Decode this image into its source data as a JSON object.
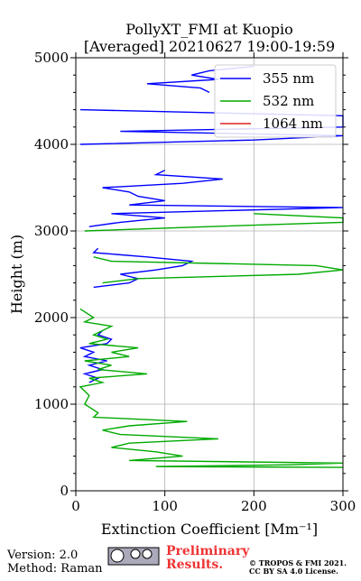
{
  "chart_data": {
    "type": "line",
    "title": [
      "PollyXT_FMI at Kuopio",
      "[Averaged] 20210627 19:00-19:59"
    ],
    "xlabel": "Extinction Coefficient [Mm⁻¹]",
    "ylabel": "Height (m)",
    "xlim": [
      0,
      300
    ],
    "xticks": [
      0,
      100,
      200,
      300
    ],
    "ylim": [
      0,
      5000
    ],
    "yticks": [
      0,
      1000,
      2000,
      3000,
      4000,
      5000
    ],
    "yminorticks": [
      200,
      400,
      600,
      800,
      1200,
      1400,
      1600,
      1800,
      2200,
      2400,
      2600,
      2800,
      3200,
      3400,
      3600,
      3800,
      4200,
      4400,
      4600,
      4800
    ],
    "grid": true,
    "legend": "upper right",
    "series": [
      {
        "name": "355 nm",
        "color": "#0000ff",
        "height": [
          1250,
          1300,
          1350,
          1400,
          1450,
          1500,
          1550,
          1600,
          1650,
          1700,
          1750,
          1800,
          1850,
          null,
          2350,
          2400,
          2450,
          2500,
          2550,
          2600,
          2650,
          2700,
          2750,
          2800,
          null,
          3050,
          3100,
          3150,
          3200,
          3270,
          3300,
          3350,
          3400,
          3450,
          3500,
          3550,
          3600,
          3650,
          3700,
          null,
          4000,
          4050,
          4100,
          4150,
          4200,
          4330,
          4400,
          null,
          4600,
          4650,
          4700,
          4750,
          4800,
          4850,
          4900
        ],
        "values": [
          15,
          25,
          10,
          30,
          15,
          35,
          10,
          20,
          5,
          35,
          40,
          25,
          30,
          null,
          20,
          60,
          70,
          50,
          90,
          120,
          130,
          80,
          20,
          25,
          null,
          15,
          50,
          100,
          40,
          300,
          60,
          100,
          70,
          60,
          30,
          120,
          165,
          90,
          100,
          null,
          5,
          200,
          300,
          50,
          300,
          300,
          5,
          null,
          150,
          140,
          80,
          160,
          130,
          150,
          200
        ]
      },
      {
        "name": "532 nm",
        "color": "#00aa00",
        "height": [
          270,
          280,
          300,
          320,
          350,
          400,
          450,
          500,
          550,
          600,
          650,
          700,
          750,
          800,
          850,
          900,
          1000,
          1100,
          1200,
          1250,
          1300,
          1350,
          1400,
          1450,
          1500,
          1550,
          1600,
          1650,
          1700,
          1750,
          1800,
          1900,
          1950,
          2000,
          2100,
          null,
          2400,
          2450,
          2500,
          2550,
          2600,
          2650,
          2700,
          null,
          3000,
          3050,
          3100,
          3150,
          3200
        ],
        "values": [
          300,
          90,
          240,
          300,
          60,
          120,
          90,
          40,
          60,
          160,
          50,
          30,
          60,
          125,
          20,
          25,
          10,
          15,
          5,
          30,
          15,
          80,
          25,
          40,
          10,
          60,
          40,
          70,
          15,
          35,
          20,
          40,
          10,
          20,
          5,
          null,
          30,
          70,
          250,
          300,
          270,
          40,
          20,
          null,
          10,
          150,
          300,
          300,
          200
        ]
      },
      {
        "name": "1064 nm",
        "color": "#dd2222",
        "height": [],
        "values": []
      }
    ]
  },
  "footer": {
    "version": "Version: 2.0",
    "method": "Method: Raman",
    "status": [
      "Preliminary",
      "Results."
    ],
    "copyright": [
      "© TROPOS & FMI 2021.",
      "CC BY SA 4.0 License."
    ]
  }
}
